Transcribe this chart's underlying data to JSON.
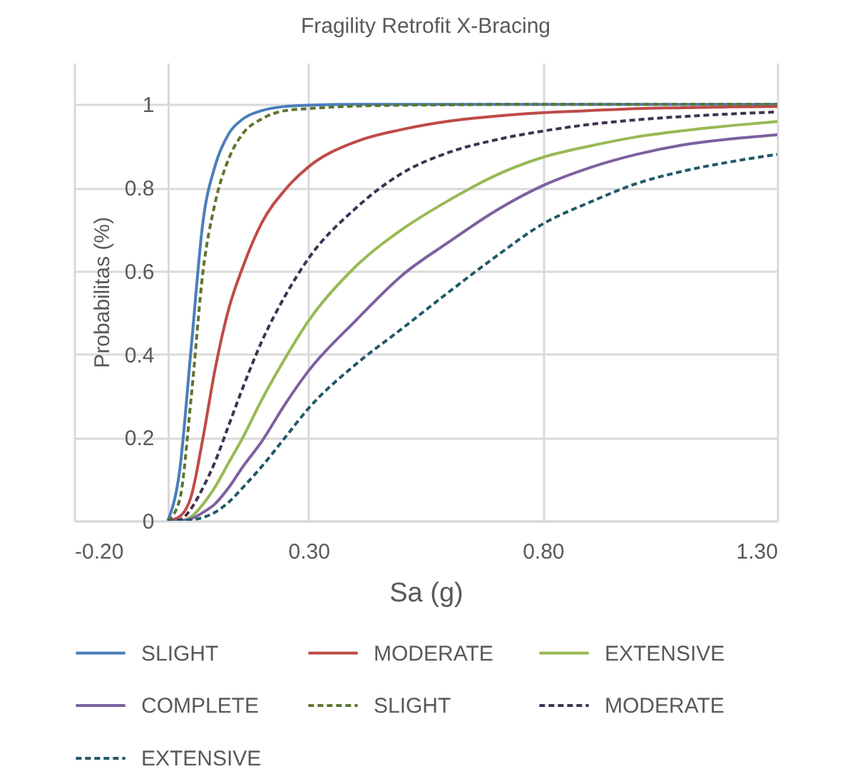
{
  "chart_data": {
    "type": "line",
    "title": "Fragility Retrofit X-Bracing",
    "xlabel": "Sa (g)",
    "ylabel": "Probabilitas (%)",
    "x": [
      0,
      0.025,
      0.05,
      0.075,
      0.1,
      0.13,
      0.16,
      0.2,
      0.25,
      0.3,
      0.4,
      0.5,
      0.6,
      0.7,
      0.8,
      0.9,
      1.0,
      1.1,
      1.2,
      1.3
    ],
    "series": [
      {
        "name": "SLIGHT",
        "color": "#4a7ebb",
        "line_style": "solid",
        "values": [
          0,
          0.12,
          0.42,
          0.72,
          0.85,
          0.93,
          0.965,
          0.985,
          0.995,
          0.998,
          1,
          1,
          1,
          1,
          1,
          1,
          1,
          1,
          1,
          1
        ]
      },
      {
        "name": "MODERATE",
        "color": "#be4b48",
        "line_style": "solid",
        "values": [
          0,
          0.01,
          0.06,
          0.2,
          0.36,
          0.51,
          0.61,
          0.715,
          0.795,
          0.85,
          0.91,
          0.94,
          0.96,
          0.972,
          0.98,
          0.985,
          0.99,
          0.992,
          0.994,
          0.995
        ]
      },
      {
        "name": "EXTENSIVE",
        "color": "#98b954",
        "line_style": "solid",
        "values": [
          0,
          0,
          0.01,
          0.04,
          0.08,
          0.14,
          0.2,
          0.29,
          0.39,
          0.48,
          0.61,
          0.7,
          0.77,
          0.83,
          0.873,
          0.9,
          0.922,
          0.937,
          0.949,
          0.959
        ]
      },
      {
        "name": "COMPLETE",
        "color": "#7d60a0",
        "line_style": "solid",
        "values": [
          0,
          0,
          0.005,
          0.02,
          0.04,
          0.08,
          0.13,
          0.19,
          0.28,
          0.36,
          0.48,
          0.59,
          0.67,
          0.745,
          0.805,
          0.848,
          0.88,
          0.903,
          0.917,
          0.927
        ]
      },
      {
        "name": "SLIGHT",
        "color": "#5f7530",
        "line_style": "dashed",
        "values": [
          0,
          0.05,
          0.3,
          0.6,
          0.76,
          0.87,
          0.93,
          0.965,
          0.985,
          0.99,
          0.996,
          0.998,
          0.999,
          1,
          1,
          1,
          1,
          1,
          1,
          1
        ]
      },
      {
        "name": "MODERATE",
        "color": "#403152",
        "line_style": "dashed",
        "values": [
          0,
          0.002,
          0.03,
          0.08,
          0.14,
          0.23,
          0.32,
          0.43,
          0.54,
          0.63,
          0.75,
          0.835,
          0.885,
          0.915,
          0.936,
          0.952,
          0.963,
          0.971,
          0.977,
          0.982
        ]
      },
      {
        "name": "EXTENSIVE",
        "color": "#215968",
        "line_style": "dashed",
        "values": [
          0,
          0,
          0.002,
          0.008,
          0.02,
          0.045,
          0.08,
          0.13,
          0.2,
          0.27,
          0.375,
          0.462,
          0.55,
          0.635,
          0.713,
          0.765,
          0.81,
          0.84,
          0.862,
          0.88
        ]
      }
    ],
    "xlim": [
      -0.2,
      1.3
    ],
    "ylim": [
      0,
      1.1
    ],
    "xticks": [
      {
        "value": -0.2,
        "label": "-0.20"
      },
      {
        "value": 0.3,
        "label": "0.30"
      },
      {
        "value": 0.8,
        "label": "0.80"
      },
      {
        "value": 1.3,
        "label": "1.30"
      }
    ],
    "yticks": [
      0,
      0.2,
      0.4,
      0.6,
      0.8,
      1
    ],
    "grid": true,
    "legend": "bottom"
  }
}
